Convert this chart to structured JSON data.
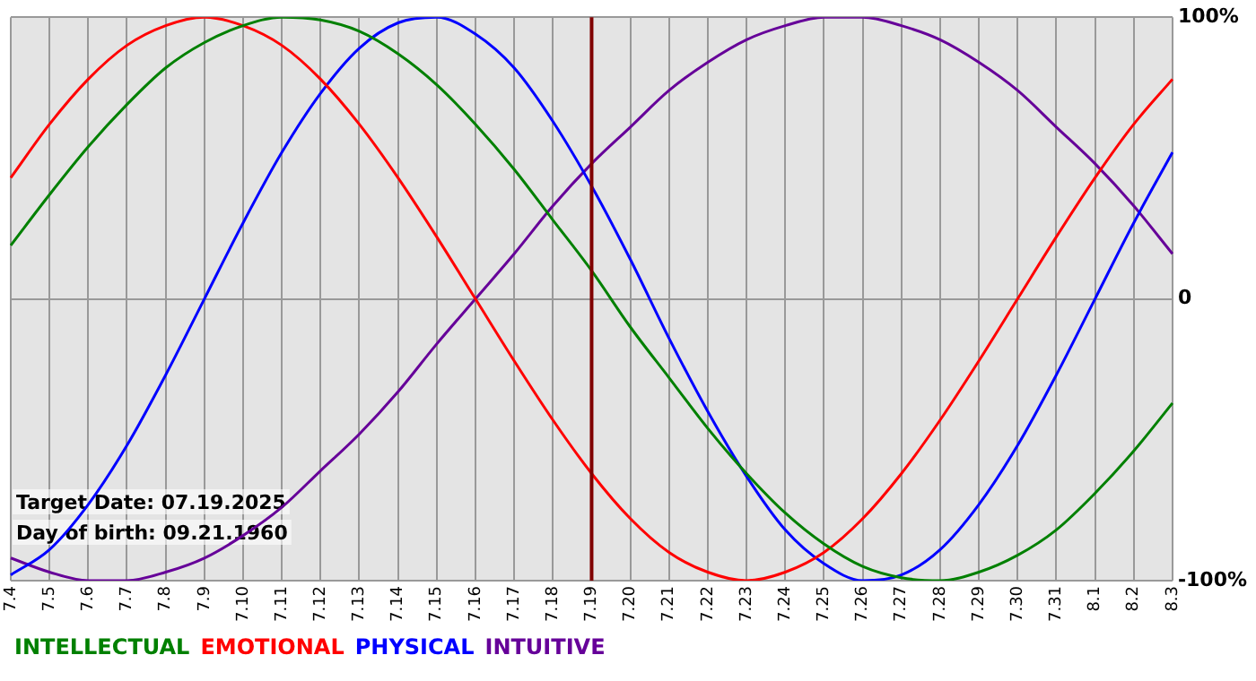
{
  "chart_data": {
    "type": "line",
    "categories": [
      "7.4",
      "7.5",
      "7.6",
      "7.7",
      "7.8",
      "7.9",
      "7.10",
      "7.11",
      "7.12",
      "7.13",
      "7.14",
      "7.15",
      "7.16",
      "7.17",
      "7.18",
      "7.19",
      "7.20",
      "7.21",
      "7.22",
      "7.23",
      "7.24",
      "7.25",
      "7.26",
      "7.27",
      "7.28",
      "7.29",
      "7.30",
      "7.31",
      "8.1",
      "8.2",
      "8.3"
    ],
    "series": [
      {
        "name": "INTELLECTUAL",
        "color": "#008000",
        "values": [
          19,
          37,
          54,
          69,
          82,
          91,
          97,
          100,
          99,
          95,
          87,
          76,
          62,
          46,
          28,
          10,
          -10,
          -28,
          -46,
          -62,
          -76,
          -87,
          -95,
          -99,
          -100,
          -97,
          -91,
          -82,
          -69,
          -54,
          -37
        ]
      },
      {
        "name": "EMOTIONAL",
        "color": "#ff0000",
        "values": [
          43,
          62,
          78,
          90,
          97,
          100,
          97,
          90,
          78,
          62,
          43,
          22,
          0,
          -22,
          -43,
          -62,
          -78,
          -90,
          -97,
          -100,
          -97,
          -90,
          -78,
          -62,
          -43,
          -22,
          0,
          22,
          43,
          62,
          78
        ]
      },
      {
        "name": "PHYSICAL",
        "color": "#0000ff",
        "values": [
          -98,
          -89,
          -73,
          -52,
          -27,
          0,
          27,
          52,
          73,
          89,
          98,
          100,
          94,
          82,
          63,
          40,
          14,
          -14,
          -40,
          -63,
          -82,
          -94,
          -100,
          -98,
          -89,
          -73,
          -52,
          -27,
          0,
          27,
          52
        ]
      },
      {
        "name": "INTUITIVE",
        "color": "#660099",
        "values": [
          -92,
          -97,
          -100,
          -100,
          -97,
          -92,
          -84,
          -74,
          -61,
          -48,
          -33,
          -16,
          0,
          16,
          33,
          48,
          61,
          74,
          84,
          92,
          97,
          100,
          100,
          97,
          92,
          84,
          74,
          61,
          48,
          33,
          16
        ]
      }
    ],
    "ylim": [
      -100,
      100
    ],
    "yticks": [
      {
        "value": -100,
        "label": "-100%"
      },
      {
        "value": 0,
        "label": "0"
      },
      {
        "value": 100,
        "label": "100%"
      }
    ],
    "ref_lines": [
      {
        "axis": "x",
        "value": "7.19",
        "color": "#800000"
      }
    ],
    "annotations": [
      "Target Date: 07.19.2025",
      "Day of birth: 09.21.1960"
    ],
    "grid": true,
    "legend": "bottom left"
  }
}
